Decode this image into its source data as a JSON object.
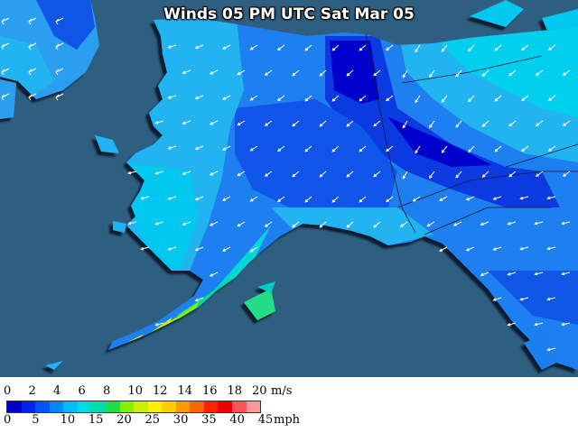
{
  "title": "Winds 05 PM UTC Sat Mar 05",
  "legend": {
    "ms_label": "m/s",
    "mph_label": "mph",
    "ms_ticks": [
      "0",
      "2",
      "4",
      "6",
      "8",
      "10",
      "12",
      "14",
      "16",
      "18",
      "20"
    ],
    "mph_ticks": [
      "0",
      "5",
      "10",
      "15",
      "20",
      "25",
      "30",
      "35",
      "40",
      "45"
    ],
    "colors": [
      "#0000cc",
      "#0022ee",
      "#0055ff",
      "#0088ff",
      "#00bbff",
      "#00dddd",
      "#00ddaa",
      "#22dd44",
      "#88ee00",
      "#ccee00",
      "#ffee00",
      "#ffcc00",
      "#ff9900",
      "#ff6600",
      "#ff2200",
      "#ee0000",
      "#ff5555",
      "#ff9999"
    ]
  },
  "colors": {
    "ocean": "#2f5f80",
    "coast_shadow": "#0b1f30"
  }
}
